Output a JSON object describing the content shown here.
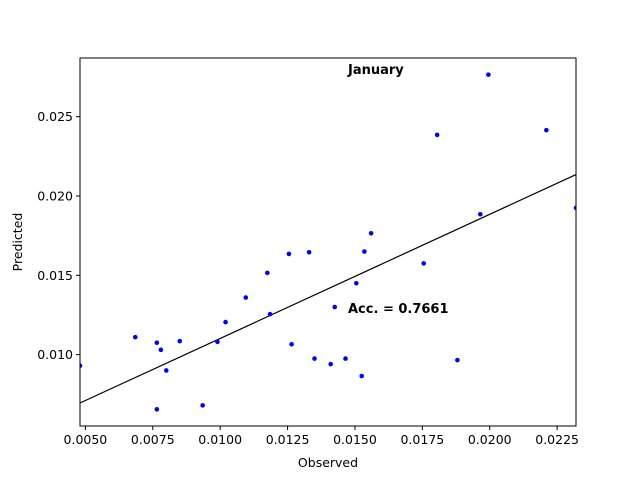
{
  "chart_data": {
    "type": "scatter",
    "xlabel": "Observed",
    "ylabel": "Predicted",
    "xlim": [
      0.0048,
      0.0232
    ],
    "ylim": [
      0.0055,
      0.0287
    ],
    "xticks": [
      "0.0050",
      "0.0075",
      "0.0100",
      "0.0125",
      "0.0150",
      "0.0175",
      "0.0200",
      "0.0225"
    ],
    "yticks": [
      "0.010",
      "0.015",
      "0.020",
      "0.025"
    ],
    "xtick_values": [
      0.005,
      0.0075,
      0.01,
      0.0125,
      0.015,
      0.0175,
      0.02,
      0.0225
    ],
    "ytick_values": [
      0.01,
      0.015,
      0.02,
      0.025
    ],
    "grid": false,
    "point_color": "#0000ff",
    "line_color": "#000000",
    "annotations": {
      "title": "January",
      "accuracy": "Acc. = 0.7661"
    },
    "fit_line": {
      "x": [
        0.0048,
        0.0232
      ],
      "y": [
        0.00695,
        0.02135
      ]
    },
    "points": [
      {
        "x": 0.0048,
        "y": 0.0093
      },
      {
        "x": 0.00685,
        "y": 0.0111
      },
      {
        "x": 0.00765,
        "y": 0.01075
      },
      {
        "x": 0.0078,
        "y": 0.0103
      },
      {
        "x": 0.008,
        "y": 0.009
      },
      {
        "x": 0.0085,
        "y": 0.01085
      },
      {
        "x": 0.00765,
        "y": 0.00655
      },
      {
        "x": 0.00935,
        "y": 0.0068
      },
      {
        "x": 0.0099,
        "y": 0.0108
      },
      {
        "x": 0.0102,
        "y": 0.01205
      },
      {
        "x": 0.01095,
        "y": 0.0136
      },
      {
        "x": 0.01175,
        "y": 0.01515
      },
      {
        "x": 0.01185,
        "y": 0.01255
      },
      {
        "x": 0.01255,
        "y": 0.01635
      },
      {
        "x": 0.01265,
        "y": 0.01065
      },
      {
        "x": 0.0133,
        "y": 0.01645
      },
      {
        "x": 0.0135,
        "y": 0.00975
      },
      {
        "x": 0.0141,
        "y": 0.0094
      },
      {
        "x": 0.01425,
        "y": 0.013
      },
      {
        "x": 0.01465,
        "y": 0.00975
      },
      {
        "x": 0.01505,
        "y": 0.0145
      },
      {
        "x": 0.01525,
        "y": 0.00865
      },
      {
        "x": 0.01535,
        "y": 0.0165
      },
      {
        "x": 0.0156,
        "y": 0.01765
      },
      {
        "x": 0.01755,
        "y": 0.01575
      },
      {
        "x": 0.01805,
        "y": 0.02385
      },
      {
        "x": 0.0188,
        "y": 0.00965
      },
      {
        "x": 0.01965,
        "y": 0.01885
      },
      {
        "x": 0.01995,
        "y": 0.02765
      },
      {
        "x": 0.0221,
        "y": 0.02415
      },
      {
        "x": 0.0232,
        "y": 0.01925
      }
    ]
  }
}
